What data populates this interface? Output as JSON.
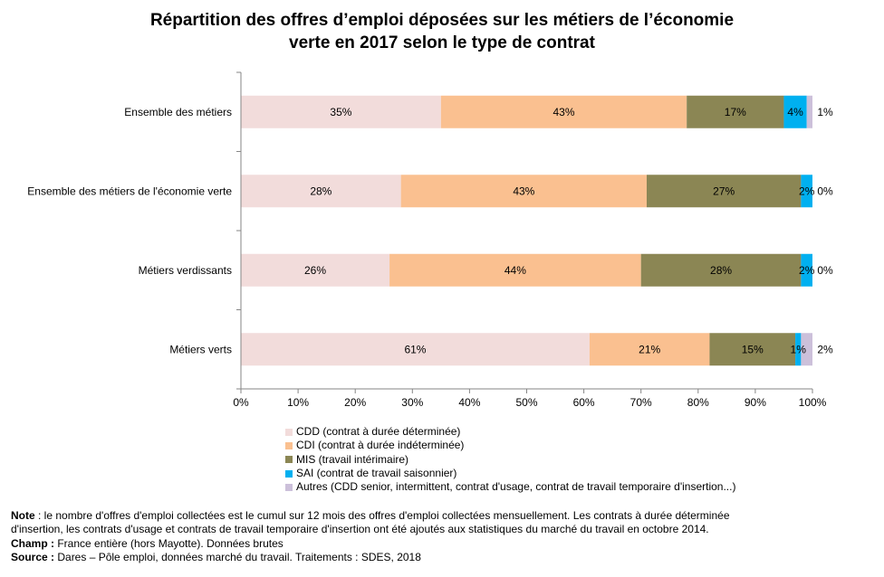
{
  "chart_data": {
    "type": "bar",
    "orientation": "horizontal",
    "stacked": true,
    "title": "Répartition des offres d’emploi déposées sur les métiers de l’économie verte en 2017 selon le type de contrat",
    "title_lines": [
      "Répartition des offres d’emploi déposées sur les métiers de l’économie",
      "verte en 2017 selon le type de contrat"
    ],
    "categories": [
      "Ensemble des métiers",
      "Ensemble des métiers de l'économie verte",
      "Métiers verdissants",
      "Métiers verts"
    ],
    "series": [
      {
        "name": "CDD (contrat à durée déterminée)",
        "color": "#f2dcdb",
        "values": [
          35,
          28,
          26,
          61
        ],
        "labels": [
          "35%",
          "28%",
          "26%",
          "61%"
        ]
      },
      {
        "name": "CDI (contrat à durée indéterminée)",
        "color": "#fac090",
        "values": [
          43,
          43,
          44,
          21
        ],
        "labels": [
          "43%",
          "43%",
          "44%",
          "21%"
        ]
      },
      {
        "name": "MIS (travail intérimaire)",
        "color": "#8b8654",
        "values": [
          17,
          27,
          28,
          15
        ],
        "labels": [
          "17%",
          "27%",
          "28%",
          "15%"
        ]
      },
      {
        "name": "SAI (contrat de travail saisonnier)",
        "color": "#00b0f0",
        "values": [
          4,
          2,
          2,
          1
        ],
        "labels": [
          "4%",
          "2%",
          "2%",
          "1%"
        ]
      },
      {
        "name": "Autres (CDD senior, intermittent, contrat d'usage, contrat de travail temporaire d'insertion...)",
        "color": "#ccc0da",
        "values": [
          1,
          0,
          0,
          2
        ],
        "labels": [
          "1%",
          "0%",
          "0%",
          "2%"
        ]
      }
    ],
    "xlim": [
      0,
      100
    ],
    "xticks": [
      "0%",
      "10%",
      "20%",
      "30%",
      "40%",
      "50%",
      "60%",
      "70%",
      "80%",
      "90%",
      "100%"
    ],
    "grid": false,
    "legend_position": "bottom"
  },
  "notes": {
    "note_label": "Note",
    "note_text_1": " : le nombre d'offres d'emploi collectées est le cumul sur 12 mois des offres d'emploi collectées mensuellement. Les contrats à durée déterminée",
    "note_text_2": "d'insertion, les contrats d'usage et contrats de travail temporaire d'insertion ont été ajoutés aux statistiques du marché du travail en octobre 2014.",
    "champ_label": "Champ :",
    "champ_text": " France entière (hors Mayotte). Données brutes",
    "source_label": "Source :",
    "source_text": " Dares – Pôle emploi, données marché du travail. Traitements : SDES, 2018"
  }
}
